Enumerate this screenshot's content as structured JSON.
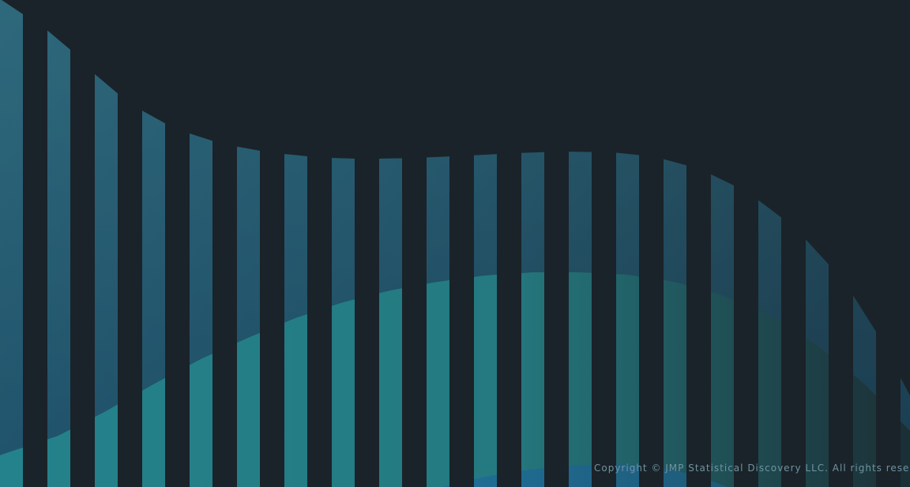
{
  "footer": {
    "copyright": "Copyright © JMP Statistical Discovery LLC. All rights reserve"
  }
}
